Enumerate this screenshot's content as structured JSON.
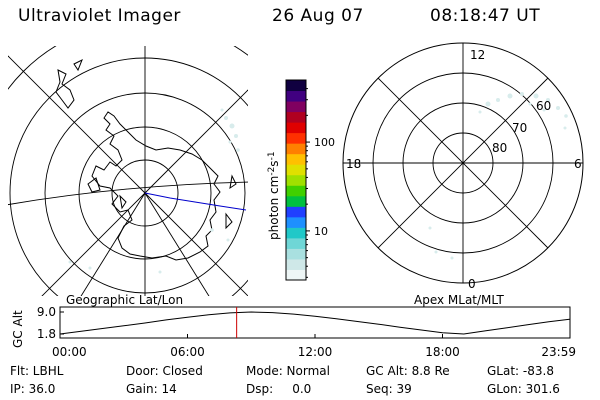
{
  "header": {
    "title": "Ultraviolet Imager",
    "date": "26 Aug 07",
    "time": "08:18:47 UT"
  },
  "colorbar": {
    "label": "photon cm",
    "label_sup1": "-2",
    "label_mid": "s",
    "label_sup2": "-1",
    "ticks": [
      {
        "value": 10,
        "label": "10"
      },
      {
        "value": 100,
        "label": "100"
      }
    ],
    "range": [
      2.8,
      500
    ],
    "scale": "log",
    "colors": [
      "#eef6f6",
      "#cfe8e8",
      "#a9e0e0",
      "#6fd6d6",
      "#20c8c8",
      "#1e90ff",
      "#2040ff",
      "#00c040",
      "#40d000",
      "#a0e000",
      "#e0e000",
      "#ffc000",
      "#ff8000",
      "#ff3000",
      "#e00000",
      "#b00020",
      "#800060",
      "#400080",
      "#100040"
    ]
  },
  "left_panel": {
    "caption": "Geographic Lat/Lon"
  },
  "right_panel": {
    "caption": "Apex MLat/MLT",
    "mlt_labels": [
      "12",
      "18",
      "6",
      "0"
    ],
    "mlat_labels": [
      "60",
      "70",
      "80"
    ]
  },
  "chart_data": {
    "type": "line",
    "title": "",
    "ylabel": "GC Alt",
    "yticks": [
      9.0,
      1.8
    ],
    "ytick_labels": [
      "9.0",
      "1.8"
    ],
    "ylim": [
      1.8,
      9.0
    ],
    "xticks": [
      "00:00",
      "06:00",
      "12:00",
      "18:00",
      "23:59"
    ],
    "xlim_hours": [
      0,
      24
    ],
    "current_time_hours": 8.313,
    "series": [
      {
        "x": [
          0,
          1,
          2,
          3,
          4,
          5,
          6,
          7,
          8,
          9,
          10,
          11,
          12,
          13,
          14,
          15,
          16,
          17,
          18,
          19,
          20,
          21,
          22,
          23,
          23.98
        ],
        "y": [
          1.8,
          2.7,
          3.6,
          4.5,
          5.4,
          6.4,
          7.3,
          8.1,
          8.7,
          9.0,
          8.8,
          8.3,
          7.6,
          6.8,
          5.9,
          5.0,
          4.0,
          3.1,
          2.2,
          1.8,
          2.8,
          3.8,
          4.8,
          5.8,
          6.6
        ]
      }
    ]
  },
  "footer": {
    "row1": [
      "Flt: LBHL",
      "Door: Closed",
      "Mode: Normal",
      "GC Alt: 8.8 Re",
      "GLat: -83.8"
    ],
    "row2": [
      "IP: 36.0",
      "Gain: 14",
      "Dsp:     0.0",
      "Seq: 39",
      "GLon: 301.6"
    ]
  }
}
